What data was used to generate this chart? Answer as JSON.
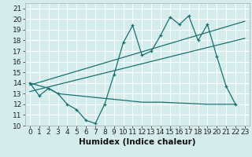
{
  "xlabel": "Humidex (Indice chaleur)",
  "xlim": [
    -0.5,
    23.5
  ],
  "ylim": [
    10,
    21.5
  ],
  "xticks": [
    0,
    1,
    2,
    3,
    4,
    5,
    6,
    7,
    8,
    9,
    10,
    11,
    12,
    13,
    14,
    15,
    16,
    17,
    18,
    19,
    20,
    21,
    22,
    23
  ],
  "yticks": [
    10,
    11,
    12,
    13,
    14,
    15,
    16,
    17,
    18,
    19,
    20,
    21
  ],
  "bg_color": "#d4ecec",
  "grid_color": "#ffffff",
  "line_color": "#1a7070",
  "zigzag_x": [
    0,
    1,
    2,
    3,
    4,
    5,
    6,
    7,
    8,
    9,
    10,
    11,
    12,
    13,
    14,
    15,
    16,
    17,
    18,
    19,
    20,
    21,
    22
  ],
  "zigzag_y": [
    14.0,
    12.8,
    13.5,
    13.0,
    12.0,
    11.5,
    10.5,
    10.2,
    12.0,
    14.8,
    17.8,
    19.4,
    16.6,
    17.0,
    18.5,
    20.2,
    19.5,
    20.3,
    18.0,
    19.5,
    16.5,
    13.7,
    12.0
  ],
  "flat_x": [
    0,
    2,
    3,
    12,
    14,
    19,
    22
  ],
  "flat_y": [
    14.0,
    13.5,
    13.0,
    12.2,
    12.2,
    12.0,
    12.0
  ],
  "upper_line_x": [
    0,
    23
  ],
  "upper_line_y": [
    13.8,
    19.8
  ],
  "lower_line_x": [
    0,
    23
  ],
  "lower_line_y": [
    13.2,
    18.2
  ],
  "font_size": 6.5
}
